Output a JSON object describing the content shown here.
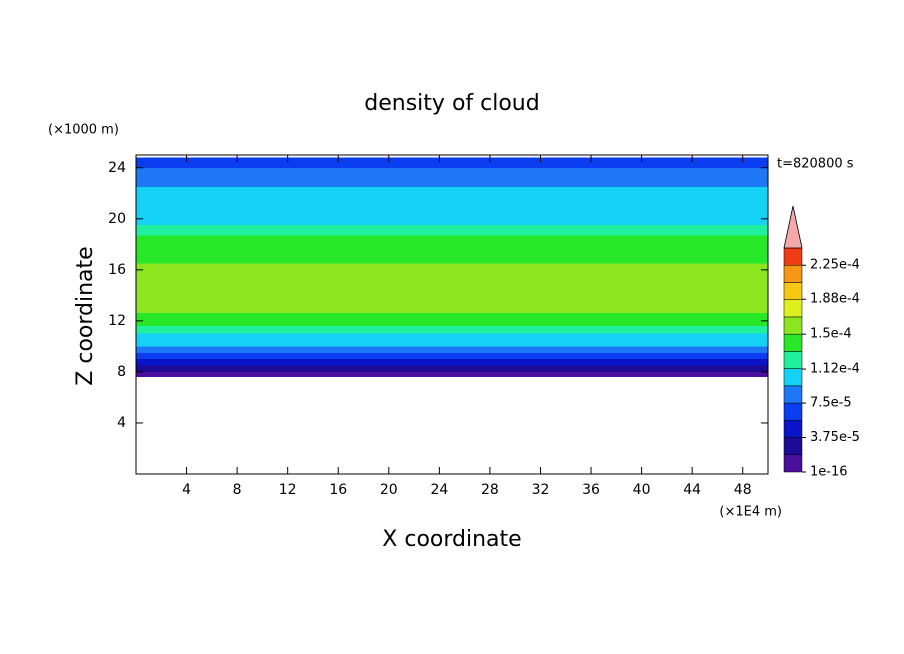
{
  "chart_data": {
    "type": "contour",
    "title": "density of cloud",
    "x_label": "X coordinate",
    "y_label": "Z coordinate",
    "x_unit": "(×1E4 m)",
    "y_unit": "(×1000 m)",
    "annotation": "t=820800 s",
    "xlim": [
      0,
      50
    ],
    "ylim": [
      0,
      25
    ],
    "xticks": [
      4,
      8,
      12,
      16,
      20,
      24,
      28,
      32,
      36,
      40,
      44,
      48
    ],
    "yticks": [
      4,
      8,
      12,
      16,
      20,
      24
    ],
    "profile": {
      "z_edges": [
        7.6,
        8.0,
        8.5,
        9.0,
        9.5,
        10.0,
        11.0,
        11.6,
        12.6,
        16.5,
        18.7,
        19.5,
        22.5,
        24.0,
        24.8
      ],
      "values": [
        1e-05,
        2.5e-05,
        4.5e-05,
        6.5e-05,
        8.5e-05,
        0.0001,
        0.00012,
        0.00014,
        0.000155,
        0.00014,
        0.00012,
        0.0001,
        8.5e-05,
        6.5e-05
      ]
    },
    "colorbar": {
      "clim": [
        1e-16,
        0.00024375
      ],
      "colors": [
        "#4b0f9e",
        "#1e0a96",
        "#0a14c8",
        "#0a3cf0",
        "#1e78f5",
        "#14d2f5",
        "#1ef0a0",
        "#28e628",
        "#8ce61e",
        "#dcf01e",
        "#f5c814",
        "#f59614",
        "#f03c14"
      ],
      "extend_color": "#f4a8a8",
      "ticks": [
        {
          "value": 1e-16,
          "label": "1e-16"
        },
        {
          "value": 3.75e-05,
          "label": "3.75e-5"
        },
        {
          "value": 7.5e-05,
          "label": "7.5e-5"
        },
        {
          "value": 0.000112,
          "label": "1.12e-4"
        },
        {
          "value": 0.00015,
          "label": "1.5e-4"
        },
        {
          "value": 0.000188,
          "label": "1.88e-4"
        },
        {
          "value": 0.000225,
          "label": "2.25e-4"
        }
      ]
    }
  }
}
